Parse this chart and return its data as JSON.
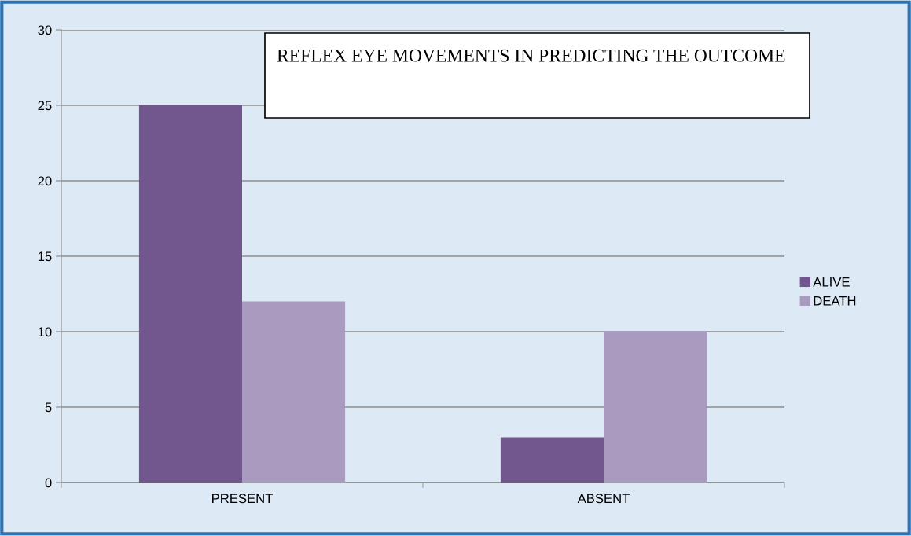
{
  "chart_data": {
    "type": "bar",
    "title": "REFLEX EYE MOVEMENTS IN PREDICTING THE OUTCOME",
    "categories": [
      "PRESENT",
      "ABSENT"
    ],
    "series": [
      {
        "name": "ALIVE",
        "color": "#72578f",
        "values": [
          25,
          3
        ]
      },
      {
        "name": "DEATH",
        "color": "#a99bc0",
        "values": [
          12,
          10
        ]
      }
    ],
    "ylim": [
      0,
      30
    ],
    "yticks": [
      0,
      5,
      10,
      15,
      20,
      25,
      30
    ],
    "grid": "y",
    "legend": "right"
  }
}
